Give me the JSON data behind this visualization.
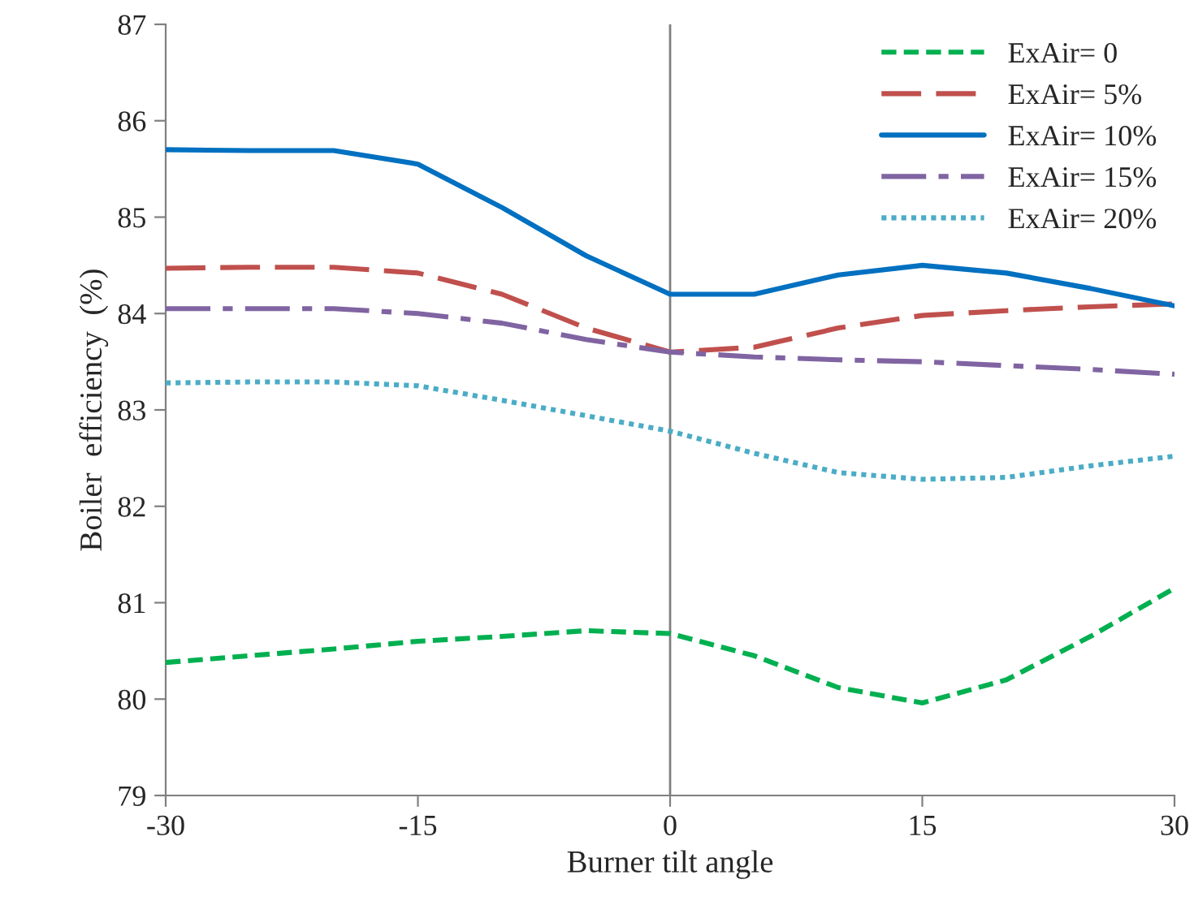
{
  "chart_data": {
    "type": "line",
    "xlabel": "Burner tilt angle",
    "ylabel": "Boiler  efficiency  (%)",
    "x": [
      -30,
      -25,
      -20,
      -15,
      -10,
      -5,
      0,
      5,
      10,
      15,
      20,
      25,
      30
    ],
    "xlim": [
      -30,
      30
    ],
    "xticks": [
      -30,
      -15,
      0,
      15,
      30
    ],
    "ylim": [
      79,
      87
    ],
    "yticks": [
      79,
      80,
      81,
      82,
      83,
      84,
      85,
      86,
      87
    ],
    "grid": false,
    "legend": "top right",
    "marker": "none",
    "ref_lines": [
      {
        "axis": "x",
        "value": 0,
        "color": "#808080",
        "line_style": "solid"
      }
    ],
    "series": [
      {
        "name": "ExAir= 0",
        "color": "#00b050",
        "line_style": "dashed",
        "values": [
          80.38,
          80.45,
          80.52,
          80.6,
          80.65,
          80.71,
          80.68,
          80.45,
          80.12,
          79.96,
          80.2,
          80.65,
          81.15
        ]
      },
      {
        "name": "ExAir= 5%",
        "color": "#c0504d",
        "line_style": "long dashed",
        "values": [
          84.47,
          84.48,
          84.48,
          84.42,
          84.2,
          83.85,
          83.6,
          83.65,
          83.85,
          83.98,
          84.03,
          84.07,
          84.1
        ]
      },
      {
        "name": "ExAir= 10%",
        "color": "#0070c0",
        "line_style": "solid",
        "values": [
          85.7,
          85.69,
          85.69,
          85.55,
          85.1,
          84.6,
          84.2,
          84.2,
          84.4,
          84.5,
          84.42,
          84.26,
          84.08
        ]
      },
      {
        "name": "ExAir= 15%",
        "color": "#8064a2",
        "line_style": "dash-dot",
        "values": [
          84.05,
          84.05,
          84.05,
          84.0,
          83.9,
          83.73,
          83.6,
          83.55,
          83.52,
          83.5,
          83.46,
          83.42,
          83.37
        ]
      },
      {
        "name": "ExAir= 20%",
        "color": "#4bacc6",
        "line_style": "dotted",
        "values": [
          83.28,
          83.29,
          83.29,
          83.25,
          83.1,
          82.94,
          82.78,
          82.55,
          82.35,
          82.28,
          82.3,
          82.42,
          82.52
        ]
      }
    ]
  }
}
